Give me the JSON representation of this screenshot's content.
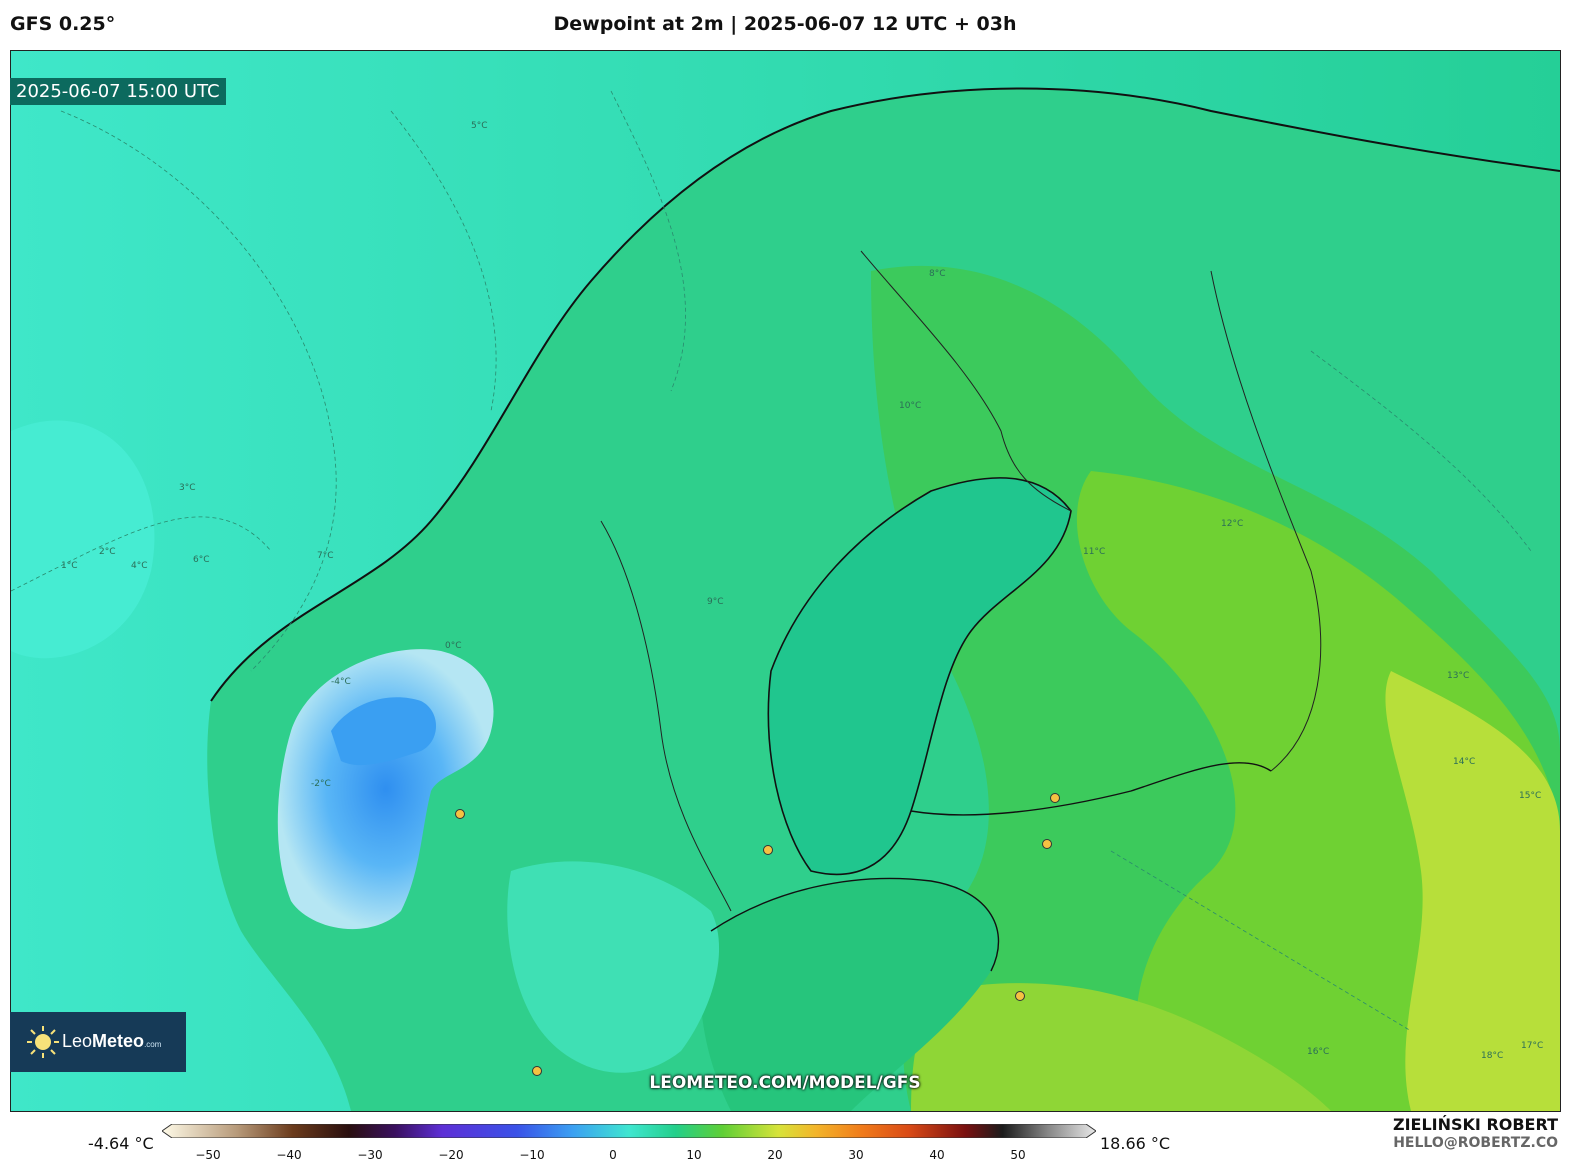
{
  "header": {
    "model": "GFS 0.25°",
    "title": "Dewpoint at 2m | 2025-06-07 12 UTC + 03h"
  },
  "map": {
    "valid_time": "2025-06-07 15:00 UTC",
    "watermark": "LEOMETEO.COM/MODEL/GFS",
    "logo": {
      "leo": "Leo",
      "meteo": "Meteo",
      "suffix": ".com"
    },
    "isoline_labels": [
      "1°C",
      "2°C",
      "3°C",
      "4°C",
      "5°C",
      "6°C",
      "7°C",
      "8°C",
      "9°C",
      "10°C",
      "11°C",
      "12°C",
      "13°C",
      "14°C",
      "15°C",
      "16°C",
      "17°C",
      "-2°C",
      "-4°C",
      "0°C",
      "18°C"
    ],
    "colors": {
      "sea_cool": "#3ee6c4",
      "land_warm": "#5fd23a",
      "cold_core": "#3fa2f2",
      "warmest": "#c6e23c"
    }
  },
  "colorbar": {
    "min_label": "-4.64 °C",
    "max_label": "18.66 °C",
    "ticks": [
      "−50",
      "−40",
      "−30",
      "−20",
      "−10",
      "0",
      "10",
      "20",
      "30",
      "40",
      "50"
    ]
  },
  "credits": {
    "author": "ZIELIŃSKI ROBERT",
    "email": "HELLO@ROBERTZ.CO"
  }
}
